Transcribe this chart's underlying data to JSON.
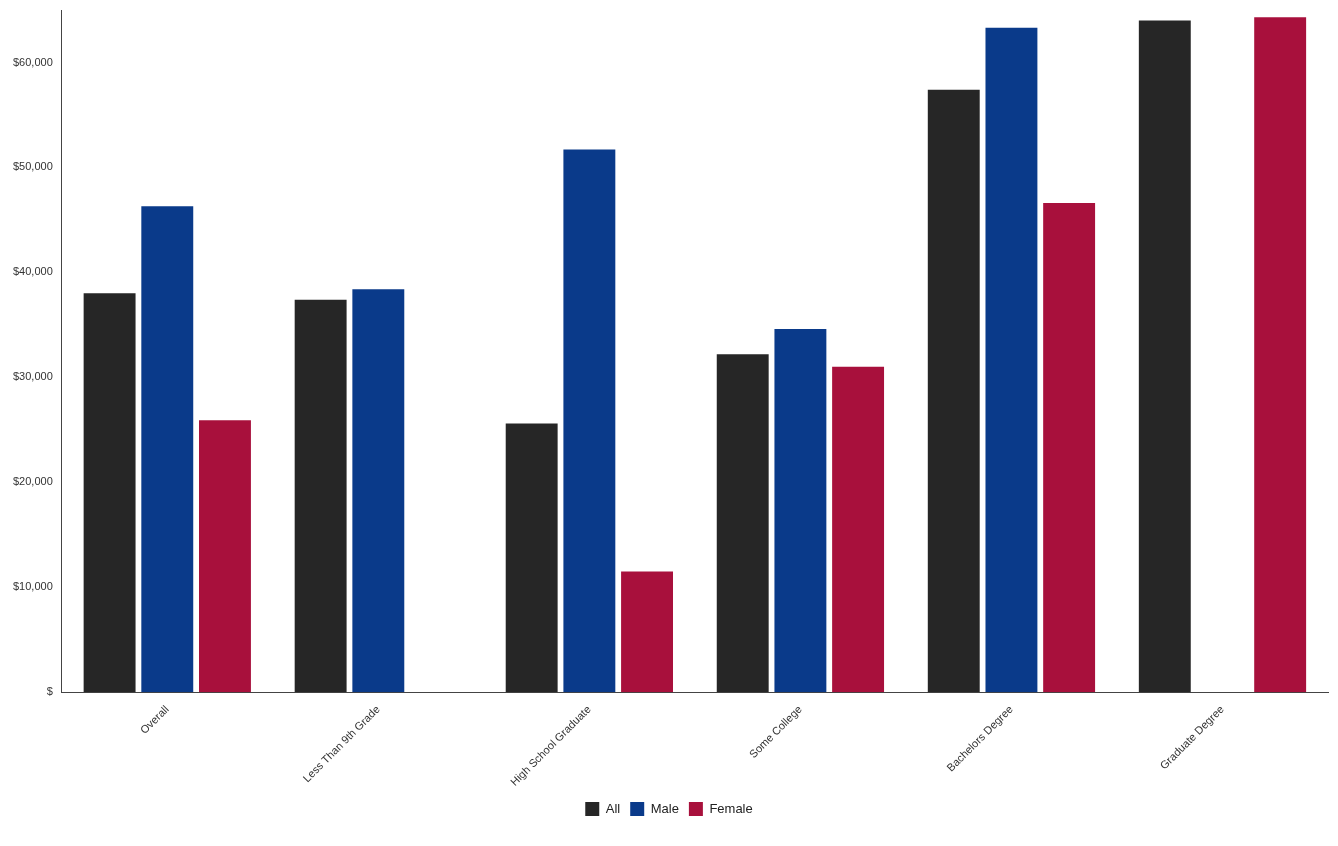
{
  "chart_data": {
    "type": "bar",
    "categories": [
      "Overall",
      "Less Than 9th Grade",
      "High School Graduate",
      "Some College",
      "Bachelors Degree",
      "Graduate Degree"
    ],
    "series": [
      {
        "name": "All",
        "color": "#262626",
        "values": [
          38000,
          37400,
          25600,
          32200,
          57400,
          64000
        ]
      },
      {
        "name": "Male",
        "color": "#0a3a8a",
        "values": [
          46300,
          38400,
          51700,
          34600,
          63300,
          null
        ]
      },
      {
        "name": "Female",
        "color": "#a8103c",
        "values": [
          25900,
          null,
          11500,
          31000,
          46600,
          64300
        ]
      }
    ],
    "ylim": [
      0,
      65000
    ],
    "yticks": [
      {
        "value": 0,
        "label": "$"
      },
      {
        "value": 10000,
        "label": "$10,000"
      },
      {
        "value": 20000,
        "label": "$20,000"
      },
      {
        "value": 30000,
        "label": "$30,000"
      },
      {
        "value": 40000,
        "label": "$40,000"
      },
      {
        "value": 50000,
        "label": "$50,000"
      },
      {
        "value": 60000,
        "label": "$60,000"
      }
    ],
    "grid": false,
    "legend": "bottom"
  }
}
